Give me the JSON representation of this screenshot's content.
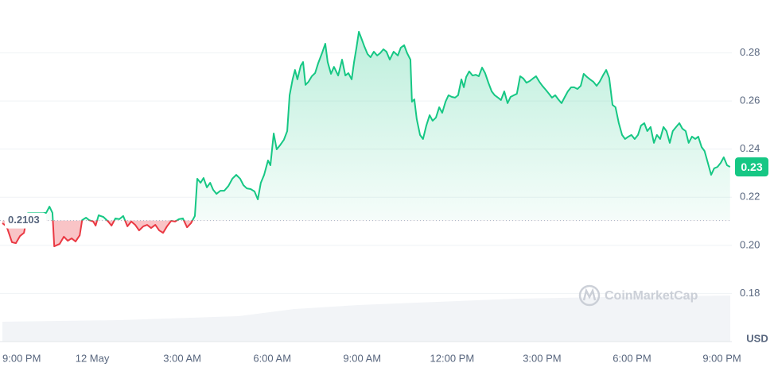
{
  "chart_data": {
    "type": "line",
    "y_label": "USD",
    "watermark": "CoinMarketCap",
    "baseline": 0.2103,
    "current_price": 0.23,
    "xlim": [
      -3,
      21.33
    ],
    "ylim": [
      0.16,
      0.3
    ],
    "xticks": [
      {
        "value": -3,
        "label": "9:00 PM"
      },
      {
        "value": 0,
        "label": "12 May"
      },
      {
        "value": 3,
        "label": "3:00 AM"
      },
      {
        "value": 6,
        "label": "6:00 AM"
      },
      {
        "value": 9,
        "label": "9:00 AM"
      },
      {
        "value": 12,
        "label": "12:00 PM"
      },
      {
        "value": 15,
        "label": "3:00 PM"
      },
      {
        "value": 18,
        "label": "6:00 PM"
      },
      {
        "value": 21,
        "label": "9:00 PM"
      }
    ],
    "yticks": [
      0.18,
      {
        "value": 0.2,
        "label": "0.20"
      },
      0.22,
      0.24,
      0.26,
      0.28
    ],
    "grid": true,
    "up_color": "#16c784",
    "down_color": "#ea3943",
    "x": [
      -3.0,
      -2.86,
      -2.68,
      -2.55,
      -2.41,
      -2.28,
      -2.15,
      -1.88,
      -1.54,
      -1.43,
      -1.33,
      -1.27,
      -1.09,
      -0.95,
      -0.82,
      -0.69,
      -0.56,
      -0.42,
      -0.34,
      -0.21,
      -0.11,
      0.03,
      0.11,
      0.21,
      0.37,
      0.53,
      0.64,
      0.77,
      0.9,
      1.03,
      1.17,
      1.3,
      1.43,
      1.56,
      1.7,
      1.83,
      1.96,
      2.1,
      2.23,
      2.36,
      2.49,
      2.63,
      2.76,
      2.89,
      3.02,
      3.16,
      3.29,
      3.42,
      3.5,
      3.61,
      3.71,
      3.82,
      3.93,
      4.03,
      4.14,
      4.27,
      4.4,
      4.54,
      4.67,
      4.8,
      4.93,
      5.04,
      5.15,
      5.28,
      5.41,
      5.52,
      5.62,
      5.73,
      5.86,
      5.94,
      6.05,
      6.15,
      6.26,
      6.39,
      6.5,
      6.58,
      6.68,
      6.76,
      6.84,
      6.95,
      7.03,
      7.11,
      7.21,
      7.32,
      7.43,
      7.53,
      7.67,
      7.77,
      7.85,
      7.96,
      8.06,
      8.2,
      8.33,
      8.44,
      8.54,
      8.65,
      8.73,
      8.81,
      8.89,
      8.99,
      9.07,
      9.18,
      9.28,
      9.39,
      9.5,
      9.6,
      9.71,
      9.81,
      9.92,
      10.05,
      10.19,
      10.29,
      10.4,
      10.5,
      10.61,
      10.66,
      10.74,
      10.82,
      10.93,
      11.03,
      11.14,
      11.25,
      11.35,
      11.46,
      11.57,
      11.67,
      11.78,
      11.88,
      11.99,
      12.1,
      12.2,
      12.31,
      12.39,
      12.47,
      12.57,
      12.68,
      12.79,
      12.89,
      13.0,
      13.1,
      13.21,
      13.32,
      13.42,
      13.53,
      13.63,
      13.74,
      13.85,
      13.95,
      14.06,
      14.16,
      14.27,
      14.38,
      14.48,
      14.59,
      14.69,
      14.8,
      14.91,
      15.01,
      15.12,
      15.23,
      15.33,
      15.44,
      15.54,
      15.65,
      15.76,
      15.86,
      15.97,
      16.07,
      16.18,
      16.29,
      16.39,
      16.5,
      16.6,
      16.71,
      16.82,
      16.92,
      17.03,
      17.14,
      17.24,
      17.35,
      17.45,
      17.56,
      17.67,
      17.77,
      17.88,
      17.98,
      18.09,
      18.2,
      18.3,
      18.41,
      18.51,
      18.62,
      18.73,
      18.83,
      18.94,
      19.05,
      19.15,
      19.26,
      19.36,
      19.47,
      19.58,
      19.68,
      19.79,
      19.89,
      20.0,
      20.11,
      20.21,
      20.32,
      20.42,
      20.53,
      20.64,
      20.74,
      20.85,
      20.96,
      21.06,
      21.17,
      21.27
    ],
    "values": [
      0.2092,
      0.2079,
      0.2013,
      0.2009,
      0.2039,
      0.2052,
      0.2135,
      0.2135,
      0.2135,
      0.2161,
      0.2135,
      0.1996,
      0.2006,
      0.2036,
      0.2019,
      0.2029,
      0.2016,
      0.2042,
      0.2105,
      0.2115,
      0.2105,
      0.2099,
      0.2082,
      0.2125,
      0.2118,
      0.2099,
      0.2082,
      0.2112,
      0.2109,
      0.2122,
      0.2079,
      0.2099,
      0.2085,
      0.2062,
      0.2079,
      0.2085,
      0.2072,
      0.2085,
      0.2062,
      0.2052,
      0.2079,
      0.2102,
      0.2099,
      0.2109,
      0.2112,
      0.2075,
      0.2092,
      0.2122,
      0.2277,
      0.226,
      0.228,
      0.2241,
      0.226,
      0.2231,
      0.2214,
      0.2227,
      0.2227,
      0.2247,
      0.2277,
      0.2293,
      0.2277,
      0.225,
      0.2237,
      0.2234,
      0.2224,
      0.2191,
      0.226,
      0.2293,
      0.2353,
      0.2333,
      0.2465,
      0.2399,
      0.2416,
      0.2439,
      0.2475,
      0.2624,
      0.269,
      0.2729,
      0.269,
      0.2746,
      0.2762,
      0.2667,
      0.268,
      0.2703,
      0.2716,
      0.2756,
      0.2802,
      0.2838,
      0.2762,
      0.2713,
      0.2742,
      0.2706,
      0.2772,
      0.2706,
      0.2716,
      0.269,
      0.2762,
      0.2822,
      0.2888,
      0.2855,
      0.2828,
      0.2795,
      0.2782,
      0.2805,
      0.2789,
      0.2799,
      0.2815,
      0.2805,
      0.2772,
      0.2805,
      0.2789,
      0.2822,
      0.2832,
      0.2799,
      0.2772,
      0.2597,
      0.2607,
      0.2525,
      0.2459,
      0.2442,
      0.2498,
      0.2541,
      0.2518,
      0.2531,
      0.2574,
      0.2551,
      0.2597,
      0.2624,
      0.2617,
      0.2614,
      0.2624,
      0.269,
      0.2657,
      0.27,
      0.2723,
      0.2706,
      0.2709,
      0.2703,
      0.2739,
      0.2716,
      0.2676,
      0.264,
      0.2624,
      0.2614,
      0.2604,
      0.264,
      0.2591,
      0.2617,
      0.2624,
      0.263,
      0.2703,
      0.2693,
      0.2676,
      0.2683,
      0.2693,
      0.2703,
      0.268,
      0.2663,
      0.2647,
      0.263,
      0.2614,
      0.2624,
      0.2607,
      0.2591,
      0.2617,
      0.264,
      0.2657,
      0.2657,
      0.265,
      0.2663,
      0.2713,
      0.27,
      0.269,
      0.268,
      0.2663,
      0.268,
      0.2706,
      0.2729,
      0.2696,
      0.2584,
      0.2574,
      0.2508,
      0.2459,
      0.2442,
      0.2452,
      0.2459,
      0.2442,
      0.2459,
      0.2498,
      0.2508,
      0.2475,
      0.2492,
      0.2426,
      0.2459,
      0.2442,
      0.2492,
      0.2475,
      0.2426,
      0.2475,
      0.2492,
      0.2508,
      0.2485,
      0.2475,
      0.2426,
      0.2452,
      0.2442,
      0.2452,
      0.2409,
      0.2392,
      0.2343,
      0.2293,
      0.232,
      0.2326,
      0.2343,
      0.2366,
      0.2333,
      0.2326
    ]
  }
}
